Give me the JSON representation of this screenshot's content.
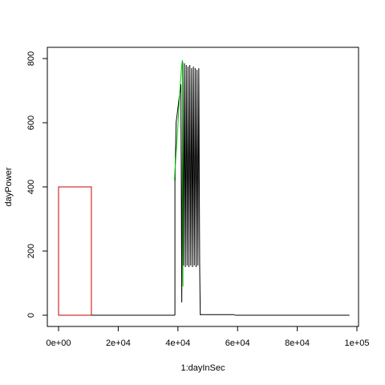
{
  "chart_data": {
    "type": "line",
    "xlabel": "1:dayInSec",
    "ylabel": "dayPower",
    "xlim": [
      0,
      100000
    ],
    "ylim": [
      0,
      800
    ],
    "x_ticks": [
      0,
      20000,
      40000,
      60000,
      80000,
      100000
    ],
    "x_tick_labels": [
      "0e+00",
      "2e+04",
      "4e+04",
      "6e+04",
      "8e+04",
      "1e+05"
    ],
    "y_ticks": [
      0,
      200,
      400,
      600,
      800
    ],
    "y_tick_labels": [
      "0",
      "200",
      "400",
      "600",
      "800"
    ],
    "grid": false,
    "series": [
      {
        "color": "#000000",
        "kind": "line",
        "baseline_segments": [
          {
            "x": [
              0,
              39000
            ],
            "y": [
              0,
              0
            ]
          },
          {
            "x": [
              47500,
              59000
            ],
            "y": [
              2,
              2
            ]
          },
          {
            "x": [
              59000,
              97500
            ],
            "y": [
              0,
              0
            ]
          }
        ],
        "points": [
          [
            39000,
            0
          ],
          [
            39000,
            410
          ],
          [
            39400,
            600
          ],
          [
            41000,
            720
          ],
          [
            41300,
            40
          ],
          [
            41600,
            790
          ],
          [
            41900,
            155
          ],
          [
            42200,
            785
          ],
          [
            42500,
            150
          ],
          [
            42800,
            780
          ],
          [
            43100,
            155
          ],
          [
            43400,
            775
          ],
          [
            43700,
            150
          ],
          [
            44000,
            780
          ],
          [
            44300,
            155
          ],
          [
            44600,
            770
          ],
          [
            44900,
            150
          ],
          [
            45200,
            775
          ],
          [
            45500,
            155
          ],
          [
            45800,
            770
          ],
          [
            46100,
            150
          ],
          [
            46400,
            765
          ],
          [
            46700,
            155
          ],
          [
            47000,
            770
          ],
          [
            47300,
            150
          ],
          [
            47500,
            0
          ]
        ]
      },
      {
        "color": "#00c800",
        "kind": "line",
        "points": [
          [
            38800,
            420
          ],
          [
            39300,
            490
          ],
          [
            39800,
            560
          ],
          [
            40300,
            640
          ],
          [
            40800,
            720
          ],
          [
            41300,
            780
          ],
          [
            41500,
            795
          ],
          [
            41700,
            90
          ]
        ]
      },
      {
        "color": "#cc0000",
        "kind": "rect",
        "x": [
          0,
          11000
        ],
        "y": [
          0,
          400
        ]
      }
    ]
  }
}
